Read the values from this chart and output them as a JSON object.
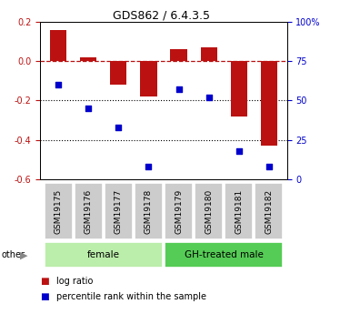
{
  "title": "GDS862 / 6.4.3.5",
  "samples": [
    "GSM19175",
    "GSM19176",
    "GSM19177",
    "GSM19178",
    "GSM19179",
    "GSM19180",
    "GSM19181",
    "GSM19182"
  ],
  "log_ratio": [
    0.16,
    0.02,
    -0.12,
    -0.18,
    0.06,
    0.07,
    -0.28,
    -0.43
  ],
  "percentile_rank": [
    60,
    45,
    33,
    8,
    57,
    52,
    18,
    8
  ],
  "groups": [
    {
      "label": "female",
      "indices": [
        0,
        1,
        2,
        3
      ],
      "color": "#bbeeaa"
    },
    {
      "label": "GH-treated male",
      "indices": [
        4,
        5,
        6,
        7
      ],
      "color": "#55cc55"
    }
  ],
  "ylim_left": [
    -0.6,
    0.2
  ],
  "ylim_right": [
    0,
    100
  ],
  "yticks_left": [
    -0.6,
    -0.4,
    -0.2,
    0.0,
    0.2
  ],
  "yticks_right": [
    0,
    25,
    50,
    75,
    100
  ],
  "bar_color": "#bb1111",
  "dot_color": "#0000cc",
  "bar_width": 0.55,
  "legend_items": [
    "log ratio",
    "percentile rank within the sample"
  ],
  "other_label": "other",
  "sample_box_color": "#cccccc",
  "title_fontsize": 9,
  "tick_fontsize": 7,
  "label_fontsize": 6.5
}
